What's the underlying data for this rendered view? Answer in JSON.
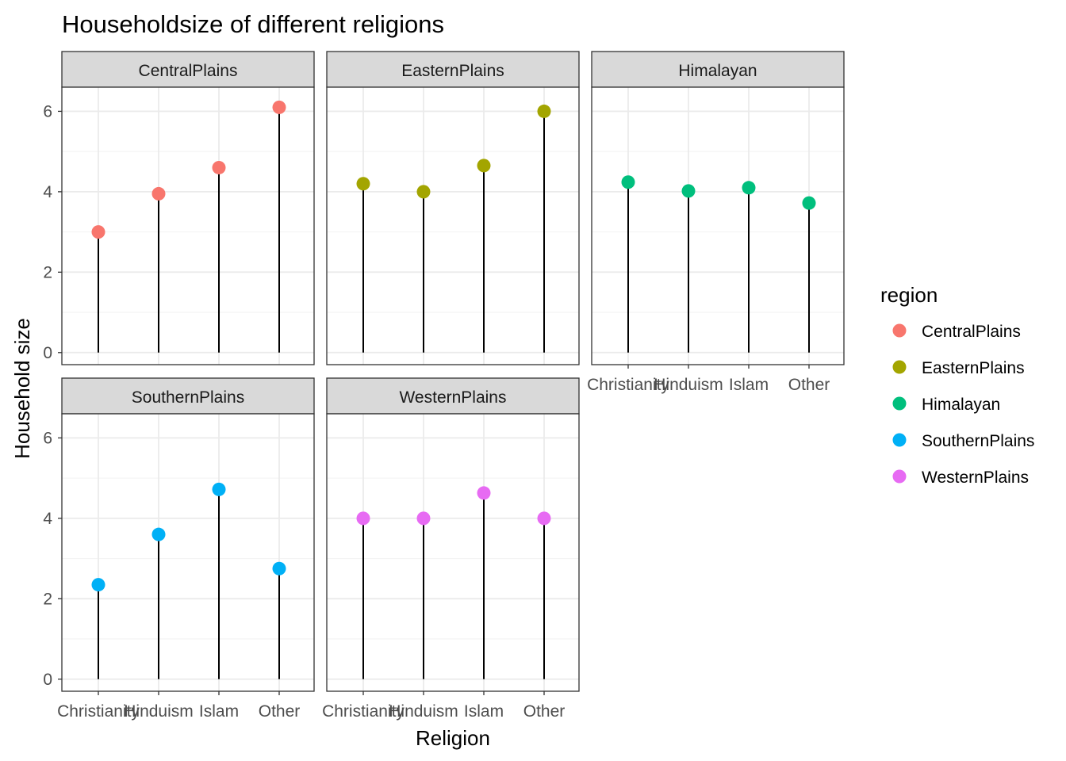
{
  "chart_data": {
    "type": "scatter",
    "subtype": "lollipop-facets",
    "title": "Householdsize of different religions",
    "xlabel": "Religion",
    "ylabel": "Household size",
    "ylim": [
      0,
      6.25
    ],
    "yticks": [
      0,
      2,
      4,
      6
    ],
    "grid": true,
    "categories": [
      "Christianity",
      "Hinduism",
      "Islam",
      "Other"
    ],
    "legend": {
      "title": "region",
      "position": "right",
      "entries": [
        "CentralPlains",
        "EasternPlains",
        "Himalayan",
        "SouthernPlains",
        "WesternPlains"
      ]
    },
    "colors": {
      "CentralPlains": "#F8766D",
      "EasternPlains": "#A3A500",
      "Himalayan": "#00BF7D",
      "SouthernPlains": "#00B0F6",
      "WesternPlains": "#E76BF3"
    },
    "series": [
      {
        "name": "CentralPlains",
        "values": [
          3.0,
          3.95,
          4.6,
          6.1
        ]
      },
      {
        "name": "EasternPlains",
        "values": [
          4.2,
          4.0,
          4.65,
          6.0
        ]
      },
      {
        "name": "Himalayan",
        "values": [
          4.24,
          4.02,
          4.1,
          3.72
        ]
      },
      {
        "name": "SouthernPlains",
        "values": [
          2.35,
          3.6,
          4.72,
          2.75
        ]
      },
      {
        "name": "WesternPlains",
        "values": [
          4.0,
          4.0,
          4.63,
          4.0
        ]
      }
    ]
  }
}
